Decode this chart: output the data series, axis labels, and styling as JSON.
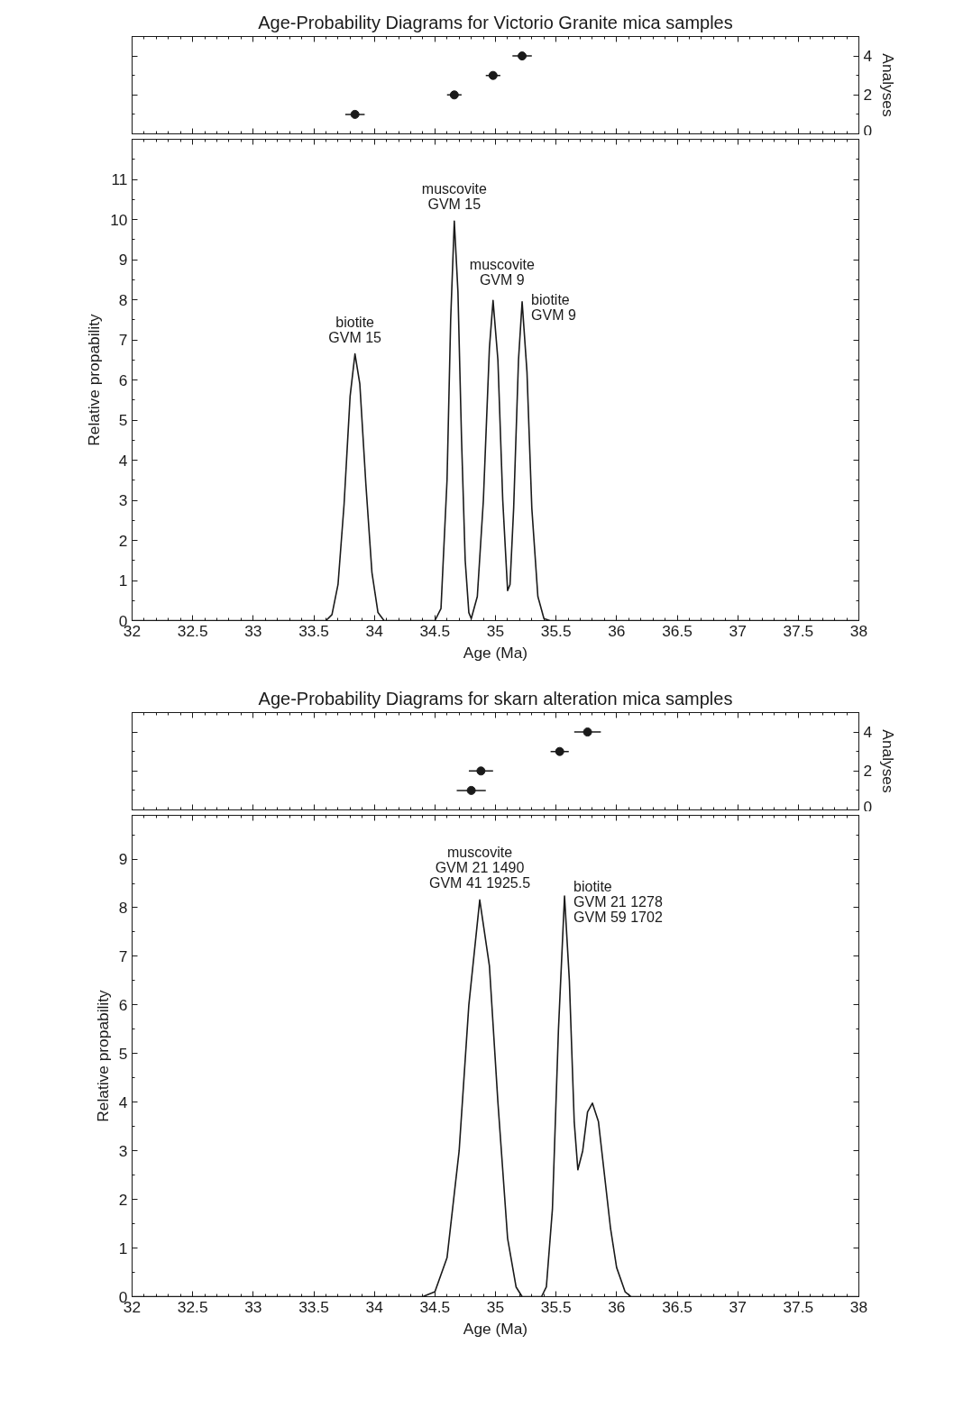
{
  "chart_data": [
    {
      "type": "scatter",
      "title": "Age-Probability Diagrams for Victorio Granite mica samples",
      "ylabel": "Analyses",
      "x": [
        33.84,
        34.66,
        34.98,
        35.22
      ],
      "values": [
        1,
        2,
        3,
        4
      ],
      "xerrors": [
        0.08,
        0.06,
        0.06,
        0.08
      ],
      "color": "#1a1a1a",
      "marker": "circle",
      "xlim": [
        32,
        38
      ],
      "ylim": [
        0,
        5
      ],
      "yticks": [
        0,
        2,
        4
      ],
      "tick_labels": "y",
      "grid": false
    },
    {
      "type": "line",
      "xlabel": "Age (Ma)",
      "ylabel": "Relative propability",
      "color": "#1a1a1a",
      "line_style": "solid",
      "x": [
        32,
        33.6,
        33.65,
        33.7,
        33.75,
        33.8,
        33.84,
        33.88,
        33.93,
        33.98,
        34.03,
        34.08,
        34.5,
        34.55,
        34.6,
        34.63,
        34.66,
        34.69,
        34.72,
        34.75,
        34.78,
        34.8,
        34.85,
        34.9,
        34.95,
        34.98,
        35.02,
        35.06,
        35.1,
        35.12,
        35.15,
        35.19,
        35.22,
        35.26,
        35.3,
        35.35,
        35.4,
        35.45,
        38
      ],
      "values": [
        0,
        0,
        0.15,
        0.9,
        2.9,
        5.6,
        6.65,
        5.9,
        3.4,
        1.2,
        0.2,
        0,
        0,
        0.3,
        3.5,
        7.5,
        9.96,
        8.2,
        4.5,
        1.5,
        0.2,
        0.05,
        0.6,
        3.0,
        6.8,
        7.98,
        6.5,
        3.0,
        0.75,
        0.9,
        2.8,
        6.5,
        7.95,
        6.2,
        2.8,
        0.6,
        0.05,
        0,
        0
      ],
      "xlim": [
        32,
        38
      ],
      "ylim": [
        0,
        12
      ],
      "xticks": [
        32,
        32.5,
        33,
        33.5,
        34,
        34.5,
        35,
        35.5,
        36,
        36.5,
        37,
        37.5,
        38
      ],
      "yticks": [
        0,
        1,
        2,
        3,
        4,
        5,
        6,
        7,
        8,
        9,
        10,
        11
      ],
      "grid": false,
      "annotations": [
        {
          "text": "biotite\nGVM 15",
          "x": 33.84,
          "y": 6.65
        },
        {
          "text": "muscovite\nGVM 15",
          "x": 34.66,
          "y": 9.96
        },
        {
          "text": "muscovite\nGVM 9",
          "x": 34.98,
          "y": 7.98
        },
        {
          "text": "biotite\nGVM 9",
          "x": 35.22,
          "y": 7.95
        }
      ]
    },
    {
      "type": "scatter",
      "title": "Age-Probability Diagrams for skarn alteration mica samples",
      "ylabel": "Analyses",
      "x": [
        34.8,
        34.88,
        35.53,
        35.76
      ],
      "values": [
        1,
        2,
        3,
        4
      ],
      "xerrors": [
        0.12,
        0.1,
        0.075,
        0.11
      ],
      "color": "#1a1a1a",
      "marker": "circle",
      "xlim": [
        32,
        38
      ],
      "ylim": [
        0,
        5
      ],
      "yticks": [
        0,
        2,
        4
      ],
      "tick_labels": "y",
      "grid": false
    },
    {
      "type": "line",
      "xlabel": "Age (Ma)",
      "ylabel": "Relative propability",
      "color": "#1a1a1a",
      "line_style": "solid",
      "x": [
        32,
        34.4,
        34.5,
        34.6,
        34.7,
        34.78,
        34.87,
        34.95,
        35.02,
        35.1,
        35.17,
        35.22,
        35.38,
        35.42,
        35.47,
        35.52,
        35.57,
        35.61,
        35.65,
        35.68,
        35.72,
        35.76,
        35.8,
        35.85,
        35.9,
        35.95,
        36.0,
        36.07,
        36.12,
        38
      ],
      "values": [
        0,
        0,
        0.1,
        0.8,
        3.0,
        6.0,
        8.16,
        6.8,
        4.0,
        1.2,
        0.2,
        0,
        0,
        0.2,
        1.8,
        5.5,
        8.24,
        6.5,
        3.6,
        2.61,
        3.0,
        3.8,
        3.98,
        3.6,
        2.5,
        1.4,
        0.6,
        0.1,
        0,
        0
      ],
      "xlim": [
        32,
        38
      ],
      "ylim": [
        0,
        9.9
      ],
      "xticks": [
        32,
        32.5,
        33,
        33.5,
        34,
        34.5,
        35,
        35.5,
        36,
        36.5,
        37,
        37.5,
        38
      ],
      "yticks": [
        0,
        1,
        2,
        3,
        4,
        5,
        6,
        7,
        8,
        9
      ],
      "grid": false,
      "annotations": [
        {
          "text": "muscovite\nGVM 21 1490\nGVM 41 1925.5",
          "x": 34.87,
          "y": 8.16
        },
        {
          "text": "biotite\nGVM 21 1278\nGVM 59 1702",
          "x": 35.57,
          "y": 8.24
        }
      ]
    }
  ]
}
